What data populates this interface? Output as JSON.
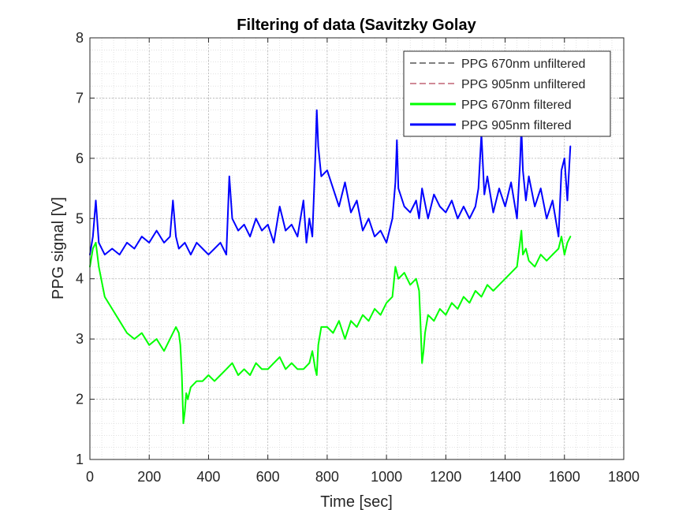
{
  "chart_data": {
    "type": "line",
    "title": "Filtering of data (Savitzky Golay",
    "xlabel": "Time [sec]",
    "ylabel": "PPG signal [V]",
    "xlim": [
      0,
      1800
    ],
    "ylim": [
      1,
      8
    ],
    "xticks": [
      0,
      200,
      400,
      600,
      800,
      1000,
      1200,
      1400,
      1600,
      1800
    ],
    "yticks": [
      1,
      2,
      3,
      4,
      5,
      6,
      7,
      8
    ],
    "x_tick_labels": [
      "0",
      "200",
      "400",
      "600",
      "800",
      "1000",
      "1200",
      "1400",
      "1600",
      "1800"
    ],
    "y_tick_labels": [
      "1",
      "2",
      "3",
      "4",
      "5",
      "6",
      "7",
      "8"
    ],
    "grid": true,
    "minor_grid": true,
    "legend_position": "top-right",
    "series": [
      {
        "name": "PPG 670nm unfiltered",
        "color": "#000000",
        "style": "dashed",
        "width": 1,
        "x": [],
        "y": []
      },
      {
        "name": "PPG 905nm unfiltered",
        "color": "#a2142f",
        "style": "dashed",
        "width": 1,
        "x": [],
        "y": []
      },
      {
        "name": "PPG 670nm filtered",
        "color": "#00ff00",
        "style": "solid",
        "width": 2,
        "x": [
          0,
          10,
          20,
          30,
          50,
          75,
          100,
          125,
          150,
          175,
          200,
          225,
          250,
          270,
          290,
          300,
          305,
          310,
          315,
          320,
          325,
          330,
          340,
          360,
          380,
          400,
          420,
          440,
          460,
          480,
          500,
          520,
          540,
          560,
          580,
          600,
          620,
          640,
          660,
          680,
          700,
          720,
          740,
          750,
          760,
          765,
          770,
          780,
          800,
          820,
          840,
          860,
          880,
          900,
          920,
          940,
          960,
          980,
          1000,
          1020,
          1030,
          1040,
          1060,
          1080,
          1100,
          1110,
          1115,
          1120,
          1125,
          1130,
          1140,
          1160,
          1180,
          1200,
          1220,
          1240,
          1260,
          1280,
          1300,
          1320,
          1340,
          1360,
          1380,
          1400,
          1420,
          1440,
          1450,
          1455,
          1460,
          1470,
          1480,
          1500,
          1520,
          1540,
          1560,
          1580,
          1590,
          1600,
          1610,
          1620
        ],
        "y": [
          4.2,
          4.5,
          4.6,
          4.2,
          3.7,
          3.5,
          3.3,
          3.1,
          3.0,
          3.1,
          2.9,
          3.0,
          2.8,
          3.0,
          3.2,
          3.1,
          2.9,
          2.4,
          1.6,
          1.8,
          2.1,
          2.0,
          2.2,
          2.3,
          2.3,
          2.4,
          2.3,
          2.4,
          2.5,
          2.6,
          2.4,
          2.5,
          2.4,
          2.6,
          2.5,
          2.5,
          2.6,
          2.7,
          2.5,
          2.6,
          2.5,
          2.5,
          2.6,
          2.8,
          2.5,
          2.4,
          2.9,
          3.2,
          3.2,
          3.1,
          3.3,
          3.0,
          3.3,
          3.2,
          3.4,
          3.3,
          3.5,
          3.4,
          3.6,
          3.7,
          4.2,
          4.0,
          4.1,
          3.9,
          4.0,
          3.8,
          3.2,
          2.6,
          2.8,
          3.1,
          3.4,
          3.3,
          3.5,
          3.4,
          3.6,
          3.5,
          3.7,
          3.6,
          3.8,
          3.7,
          3.9,
          3.8,
          3.9,
          4.0,
          4.1,
          4.2,
          4.6,
          4.8,
          4.4,
          4.5,
          4.3,
          4.2,
          4.4,
          4.3,
          4.4,
          4.5,
          4.7,
          4.4,
          4.6,
          4.7
        ]
      },
      {
        "name": "PPG 905nm filtered",
        "color": "#0000ff",
        "style": "solid",
        "width": 2,
        "x": [
          0,
          10,
          20,
          30,
          50,
          75,
          100,
          125,
          150,
          175,
          200,
          225,
          250,
          270,
          280,
          290,
          300,
          320,
          340,
          360,
          380,
          400,
          420,
          440,
          460,
          470,
          480,
          500,
          520,
          540,
          560,
          580,
          600,
          620,
          640,
          660,
          680,
          700,
          720,
          730,
          740,
          750,
          760,
          765,
          770,
          780,
          800,
          820,
          840,
          860,
          880,
          900,
          920,
          940,
          960,
          980,
          1000,
          1020,
          1030,
          1035,
          1040,
          1060,
          1080,
          1100,
          1110,
          1120,
          1140,
          1160,
          1180,
          1200,
          1220,
          1240,
          1260,
          1280,
          1300,
          1310,
          1320,
          1330,
          1340,
          1360,
          1380,
          1400,
          1420,
          1440,
          1450,
          1455,
          1460,
          1470,
          1480,
          1500,
          1520,
          1540,
          1560,
          1580,
          1590,
          1600,
          1610,
          1620
        ],
        "y": [
          4.4,
          4.7,
          5.3,
          4.6,
          4.4,
          4.5,
          4.4,
          4.6,
          4.5,
          4.7,
          4.6,
          4.8,
          4.6,
          4.7,
          5.3,
          4.7,
          4.5,
          4.6,
          4.4,
          4.6,
          4.5,
          4.4,
          4.5,
          4.6,
          4.4,
          5.7,
          5.0,
          4.8,
          4.9,
          4.7,
          5.0,
          4.8,
          4.9,
          4.6,
          5.2,
          4.8,
          4.9,
          4.7,
          5.3,
          4.6,
          5.0,
          4.7,
          6.0,
          6.8,
          6.2,
          5.7,
          5.8,
          5.5,
          5.2,
          5.6,
          5.1,
          5.3,
          4.8,
          5.0,
          4.7,
          4.8,
          4.6,
          5.0,
          5.6,
          6.3,
          5.5,
          5.2,
          5.1,
          5.3,
          5.0,
          5.5,
          5.0,
          5.4,
          5.2,
          5.1,
          5.3,
          5.0,
          5.2,
          5.0,
          5.2,
          5.5,
          6.4,
          5.4,
          5.7,
          5.1,
          5.5,
          5.2,
          5.6,
          5.0,
          5.9,
          6.5,
          5.8,
          5.3,
          5.7,
          5.2,
          5.5,
          5.0,
          5.3,
          4.7,
          5.8,
          6.0,
          5.3,
          6.2
        ]
      }
    ]
  }
}
